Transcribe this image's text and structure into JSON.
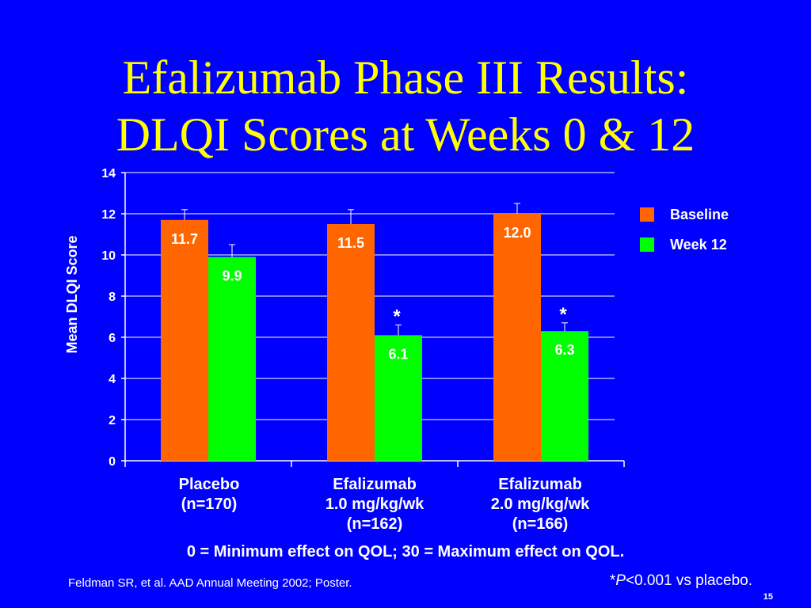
{
  "title": [
    "Efalizumab Phase III Results:",
    "DLQI Scores at Weeks 0 & 12"
  ],
  "chart_data": {
    "type": "bar",
    "categories": [
      [
        "Placebo",
        "(n=170)"
      ],
      [
        "Efalizumab",
        "1.0 mg/kg/wk",
        "(n=162)"
      ],
      [
        "Efalizumab",
        "2.0 mg/kg/wk",
        "(n=166)"
      ]
    ],
    "series": [
      {
        "name": "Baseline",
        "color": "#ff6600",
        "values": [
          11.7,
          11.5,
          12.0
        ],
        "labels": [
          "11.7",
          "11.5",
          "12.0"
        ],
        "errors": [
          0.5,
          0.7,
          0.5
        ]
      },
      {
        "name": "Week 12",
        "color": "#00ff00",
        "values": [
          9.9,
          6.1,
          6.3
        ],
        "labels": [
          "9.9",
          "6.1",
          "6.3"
        ],
        "errors": [
          0.6,
          0.5,
          0.4
        ],
        "markers": [
          "",
          "*",
          "*"
        ]
      }
    ],
    "ylabel": "Mean DLQI Score",
    "ylim": [
      0,
      14
    ],
    "yticks": [
      0,
      2,
      4,
      6,
      8,
      10,
      12,
      14
    ],
    "grid": true,
    "legend": "right"
  },
  "note": "0 = Minimum effect on QOL; 30 = Maximum effect on QOL.",
  "source": "Feldman SR, et al. AAD Annual Meeting 2002; Poster.",
  "pnote": {
    "p": "P",
    "rest": "<0.001 vs placebo.",
    "star": "*"
  },
  "page_number": "15"
}
